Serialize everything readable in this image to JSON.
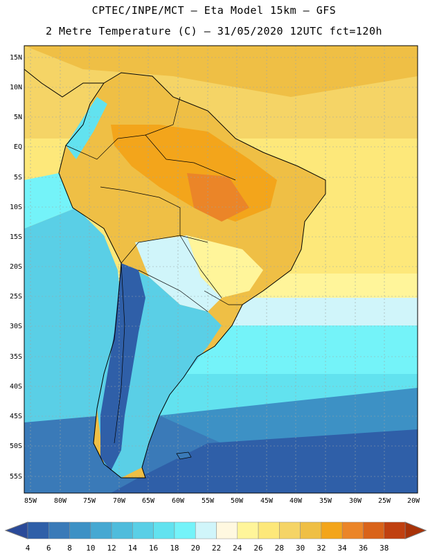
{
  "title_line1": "CPTEC/INPE/MCT –  Eta Model 15km – GFS",
  "title_line2": "2 Metre Temperature (C) – 31/05/2020 12UTC fct=120h",
  "map": {
    "lat_labels": [
      "15N",
      "10N",
      "5N",
      "EQ",
      "5S",
      "10S",
      "15S",
      "20S",
      "25S",
      "30S",
      "35S",
      "40S",
      "45S",
      "50S",
      "55S"
    ],
    "lon_labels": [
      "85W",
      "80W",
      "75W",
      "70W",
      "65W",
      "60W",
      "55W",
      "50W",
      "45W",
      "40W",
      "35W",
      "30W",
      "25W",
      "20W"
    ],
    "extent": {
      "lon_min": -86,
      "lon_max": -20,
      "lat_min": -58,
      "lat_max": 16
    }
  },
  "colorbar": {
    "labels": [
      "4",
      "6",
      "8",
      "10",
      "12",
      "14",
      "16",
      "18",
      "20",
      "22",
      "24",
      "26",
      "28",
      "30",
      "32",
      "34",
      "36",
      "38"
    ],
    "colors": [
      "#2f5fa8",
      "#3a7ab8",
      "#3d91c5",
      "#46a8d2",
      "#4fbcdc",
      "#5acfe6",
      "#62e2ef",
      "#74f3f9",
      "#d0f5fa",
      "#fff8e0",
      "#fff59a",
      "#fde87a",
      "#f5d466",
      "#efbf45",
      "#f3a51b",
      "#eb8528",
      "#d9631a",
      "#c04010"
    ],
    "left_color": "#2a4a99",
    "right_color": "#a83208"
  }
}
